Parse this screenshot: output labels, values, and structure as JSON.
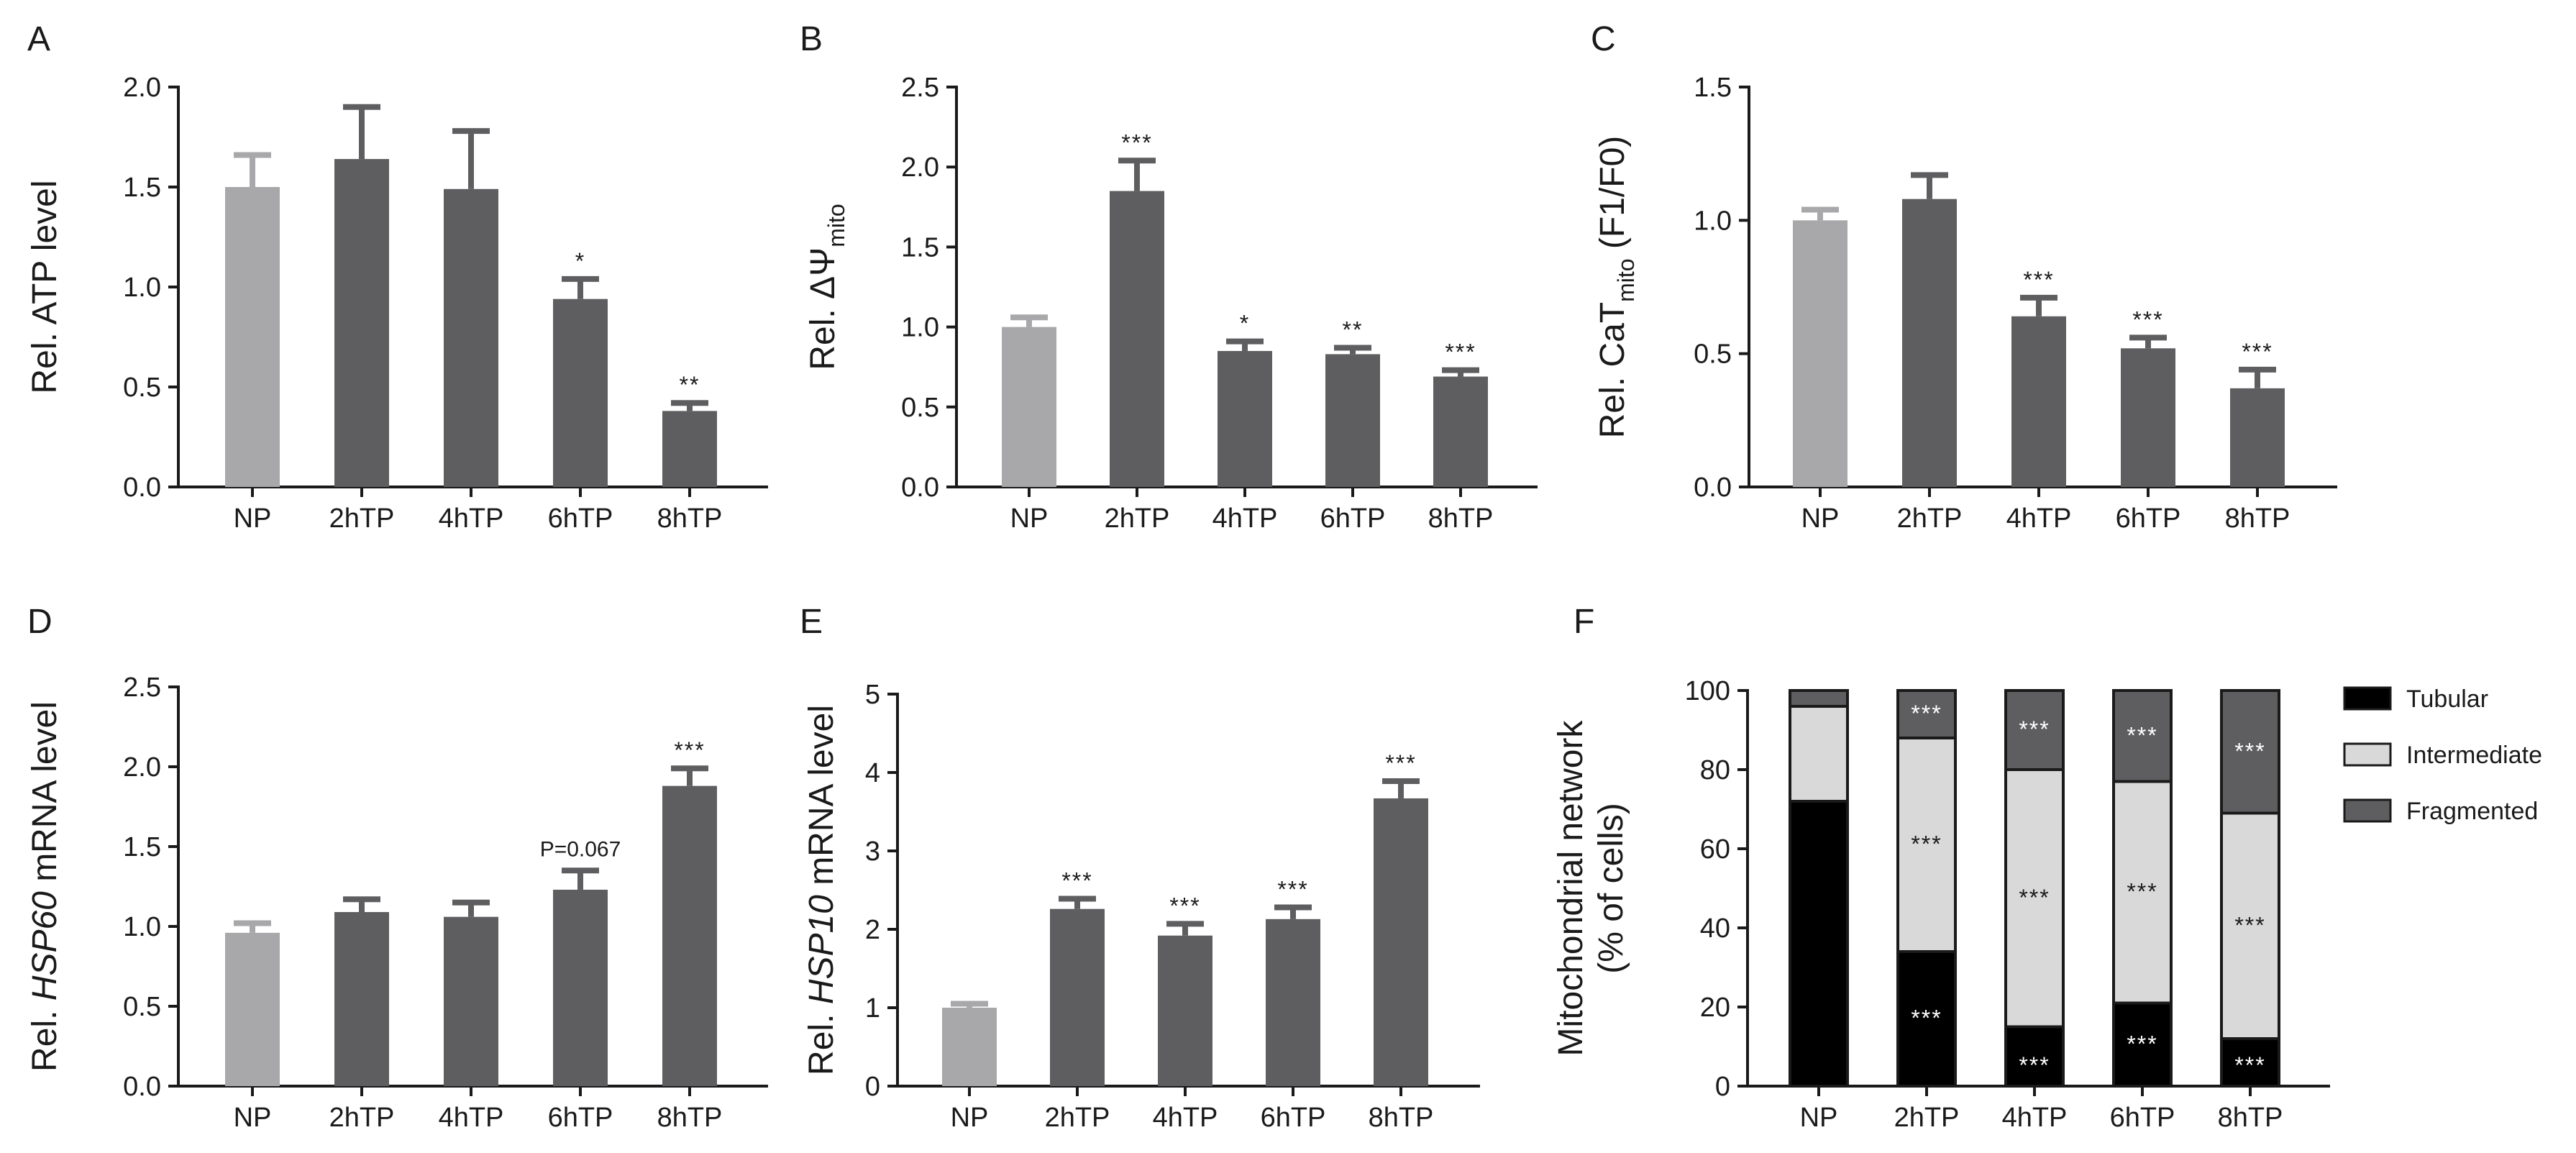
{
  "chart_data": [
    {
      "panel": "A",
      "type": "bar",
      "ylabel": "Rel. ATP level",
      "ylabel_sub": "",
      "ylabel_post": "",
      "ylim": [
        0,
        2.0
      ],
      "yticks": [
        "0.0",
        "0.5",
        "1.0",
        "1.5",
        "2.0"
      ],
      "categories": [
        "NP",
        "2hTP",
        "4hTP",
        "6hTP",
        "8hTP"
      ],
      "values": [
        1.5,
        1.64,
        1.49,
        0.94,
        0.38
      ],
      "errors": [
        0.16,
        0.26,
        0.29,
        0.1,
        0.04
      ],
      "significance": [
        "",
        "",
        "",
        "*",
        "**"
      ],
      "colors": [
        "#a8a8aa",
        "#5e5e60",
        "#5e5e60",
        "#5e5e60",
        "#5e5e60"
      ]
    },
    {
      "panel": "B",
      "type": "bar",
      "ylabel": "Rel. ΔΨ",
      "ylabel_sub": "mito",
      "ylabel_post": "",
      "ylim": [
        0,
        2.5
      ],
      "yticks": [
        "0.0",
        "0.5",
        "1.0",
        "1.5",
        "2.0",
        "2.5"
      ],
      "categories": [
        "NP",
        "2hTP",
        "4hTP",
        "6hTP",
        "8hTP"
      ],
      "values": [
        1.0,
        1.85,
        0.85,
        0.83,
        0.69
      ],
      "errors": [
        0.06,
        0.19,
        0.06,
        0.04,
        0.04
      ],
      "significance": [
        "",
        "***",
        "*",
        "**",
        "***"
      ],
      "colors": [
        "#a8a8aa",
        "#5e5e60",
        "#5e5e60",
        "#5e5e60",
        "#5e5e60"
      ]
    },
    {
      "panel": "C",
      "type": "bar",
      "ylabel": "Rel. CaT",
      "ylabel_sub": "mito",
      "ylabel_post": " (F1/F0)",
      "ylim": [
        0,
        1.5
      ],
      "yticks": [
        "0.0",
        "0.5",
        "1.0",
        "1.5"
      ],
      "categories": [
        "NP",
        "2hTP",
        "4hTP",
        "6hTP",
        "8hTP"
      ],
      "values": [
        1.0,
        1.08,
        0.64,
        0.52,
        0.37
      ],
      "errors": [
        0.04,
        0.09,
        0.07,
        0.04,
        0.07
      ],
      "significance": [
        "",
        "",
        "***",
        "***",
        "***"
      ],
      "colors": [
        "#a8a8aa",
        "#5e5e60",
        "#5e5e60",
        "#5e5e60",
        "#5e5e60"
      ]
    },
    {
      "panel": "D",
      "type": "bar",
      "ylabel": "Rel. ",
      "ylabel_italic": "HSP60",
      "ylabel_post": " mRNA level",
      "ylim": [
        0,
        2.5
      ],
      "yticks": [
        "0.0",
        "0.5",
        "1.0",
        "1.5",
        "2.0",
        "2.5"
      ],
      "categories": [
        "NP",
        "2hTP",
        "4hTP",
        "6hTP",
        "8hTP"
      ],
      "values": [
        0.96,
        1.09,
        1.06,
        1.23,
        1.88
      ],
      "errors": [
        0.06,
        0.08,
        0.09,
        0.12,
        0.11
      ],
      "significance": [
        "",
        "",
        "",
        "P=0.067",
        "***"
      ],
      "colors": [
        "#a8a8aa",
        "#5e5e60",
        "#5e5e60",
        "#5e5e60",
        "#5e5e60"
      ]
    },
    {
      "panel": "E",
      "type": "bar",
      "ylabel": "Rel. ",
      "ylabel_italic": "HSP10",
      "ylabel_post": " mRNA level",
      "ylim": [
        0,
        5
      ],
      "yticks": [
        "0",
        "1",
        "2",
        "3",
        "4",
        "5"
      ],
      "categories": [
        "NP",
        "2hTP",
        "4hTP",
        "6hTP",
        "8hTP"
      ],
      "values": [
        1.0,
        2.26,
        1.92,
        2.13,
        3.67
      ],
      "errors": [
        0.05,
        0.13,
        0.15,
        0.15,
        0.22
      ],
      "significance": [
        "",
        "***",
        "***",
        "***",
        "***"
      ],
      "colors": [
        "#a8a8aa",
        "#5e5e60",
        "#5e5e60",
        "#5e5e60",
        "#5e5e60"
      ]
    },
    {
      "panel": "F",
      "type": "stacked-bar",
      "ylabel_line1": "Mitochondrial network",
      "ylabel_line2": "(% of cells)",
      "ylim": [
        0,
        100
      ],
      "yticks": [
        "0",
        "20",
        "40",
        "60",
        "80",
        "100"
      ],
      "categories": [
        "NP",
        "2hTP",
        "4hTP",
        "6hTP",
        "8hTP"
      ],
      "series": [
        {
          "name": "Tubular",
          "color": "#000000",
          "values": [
            72,
            34,
            15,
            21,
            12
          ],
          "significance": [
            "",
            "***",
            "***",
            "***",
            "***"
          ]
        },
        {
          "name": "Intermediate",
          "color": "#d9d9d9",
          "values": [
            24,
            54,
            65,
            56,
            57
          ],
          "significance": [
            "",
            "***",
            "***",
            "***",
            "***"
          ]
        },
        {
          "name": "Fragmented",
          "color": "#5e5e60",
          "values": [
            4,
            12,
            20,
            23,
            31
          ],
          "significance": [
            "",
            "***",
            "***",
            "***",
            "***"
          ]
        }
      ]
    }
  ]
}
